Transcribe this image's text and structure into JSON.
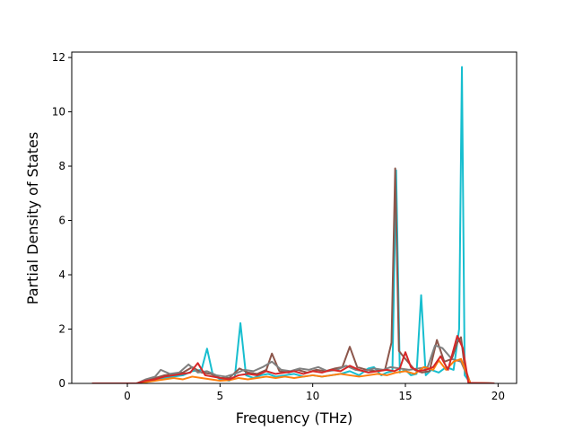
{
  "chart_data": {
    "type": "line",
    "title": "",
    "xlabel": "Frequency (THz)",
    "ylabel": "Partial Density of States",
    "xlim": [
      -3.0,
      21.0
    ],
    "ylim": [
      0,
      12.2
    ],
    "xticks": [
      0,
      5,
      10,
      15,
      20
    ],
    "yticks": [
      0,
      2,
      4,
      6,
      8,
      10,
      12
    ],
    "grid": false,
    "legend": "none",
    "series": [
      {
        "color": "#17becf",
        "x": [
          -1.9,
          0.5,
          1.0,
          1.5,
          2.0,
          2.5,
          3.0,
          3.5,
          4.0,
          4.3,
          4.6,
          5.0,
          5.5,
          5.8,
          6.1,
          6.4,
          6.8,
          7.2,
          7.6,
          8.0,
          8.5,
          9.0,
          9.5,
          10.0,
          10.5,
          11.0,
          11.5,
          12.0,
          12.5,
          13.0,
          13.3,
          13.7,
          14.0,
          14.3,
          14.5,
          14.7,
          15.0,
          15.3,
          15.6,
          15.85,
          16.1,
          16.4,
          16.8,
          17.2,
          17.6,
          17.9,
          18.05,
          18.2,
          18.5,
          19.8
        ],
        "y": [
          0,
          0,
          0.05,
          0.12,
          0.2,
          0.25,
          0.3,
          0.45,
          0.5,
          1.28,
          0.35,
          0.15,
          0.1,
          0.25,
          2.22,
          0.3,
          0.2,
          0.3,
          0.35,
          0.25,
          0.3,
          0.35,
          0.25,
          0.3,
          0.25,
          0.3,
          0.35,
          0.45,
          0.3,
          0.55,
          0.6,
          0.3,
          0.4,
          0.45,
          7.85,
          0.4,
          0.5,
          0.3,
          0.35,
          3.25,
          0.3,
          0.5,
          0.4,
          0.6,
          0.5,
          2.0,
          11.65,
          0.3,
          0.02,
          0
        ]
      },
      {
        "color": "#8c564b",
        "x": [
          -1.9,
          0.5,
          1.0,
          1.5,
          2.0,
          2.5,
          3.0,
          3.5,
          4.0,
          4.5,
          5.0,
          5.5,
          6.05,
          6.5,
          7.0,
          7.5,
          7.8,
          8.2,
          8.7,
          9.2,
          9.7,
          10.2,
          10.7,
          11.2,
          11.6,
          12.0,
          12.4,
          12.9,
          13.4,
          13.9,
          14.25,
          14.45,
          14.65,
          15.0,
          15.5,
          15.9,
          16.3,
          16.7,
          17.1,
          17.5,
          17.8,
          18.0,
          18.2,
          18.5,
          19.8
        ],
        "y": [
          0,
          0,
          0.1,
          0.2,
          0.3,
          0.35,
          0.4,
          0.6,
          0.4,
          0.35,
          0.2,
          0.2,
          0.55,
          0.4,
          0.35,
          0.5,
          1.1,
          0.45,
          0.4,
          0.5,
          0.4,
          0.5,
          0.45,
          0.55,
          0.6,
          1.35,
          0.6,
          0.5,
          0.45,
          0.5,
          1.5,
          7.92,
          1.2,
          0.9,
          0.5,
          0.4,
          0.45,
          1.6,
          0.8,
          0.9,
          1.5,
          1.7,
          0.6,
          0.02,
          0
        ]
      },
      {
        "color": "#7f7f7f",
        "x": [
          -1.9,
          0.5,
          1.0,
          1.5,
          1.8,
          2.3,
          2.8,
          3.3,
          3.8,
          4.3,
          4.8,
          5.3,
          5.8,
          6.3,
          6.8,
          7.3,
          7.8,
          8.3,
          8.8,
          9.3,
          9.8,
          10.3,
          10.8,
          11.3,
          11.8,
          12.3,
          12.8,
          13.3,
          13.8,
          14.2,
          14.7,
          15.2,
          15.7,
          16.2,
          16.6,
          17.0,
          17.5,
          18.0,
          18.5,
          19.8
        ],
        "y": [
          0,
          0,
          0.15,
          0.25,
          0.5,
          0.35,
          0.4,
          0.7,
          0.4,
          0.45,
          0.3,
          0.25,
          0.35,
          0.5,
          0.45,
          0.6,
          0.8,
          0.5,
          0.45,
          0.55,
          0.5,
          0.6,
          0.45,
          0.5,
          0.65,
          0.5,
          0.45,
          0.55,
          0.5,
          0.6,
          0.55,
          0.5,
          0.55,
          0.6,
          1.4,
          1.3,
          0.9,
          0.8,
          0.02,
          0
        ]
      },
      {
        "color": "#ff7f0e",
        "x": [
          -1.9,
          0.5,
          1.0,
          1.5,
          2.0,
          2.5,
          3.0,
          3.5,
          4.0,
          4.5,
          5.0,
          5.5,
          6.0,
          6.5,
          7.0,
          7.5,
          8.0,
          8.5,
          9.0,
          9.5,
          10.0,
          10.5,
          11.0,
          11.5,
          12.0,
          12.5,
          13.0,
          13.5,
          14.0,
          14.5,
          15.0,
          15.5,
          16.0,
          16.5,
          16.8,
          17.2,
          17.6,
          18.0,
          18.5,
          19.8
        ],
        "y": [
          0,
          0,
          0.05,
          0.1,
          0.15,
          0.2,
          0.15,
          0.25,
          0.2,
          0.15,
          0.1,
          0.12,
          0.2,
          0.15,
          0.2,
          0.25,
          0.2,
          0.25,
          0.2,
          0.25,
          0.3,
          0.25,
          0.3,
          0.35,
          0.3,
          0.25,
          0.3,
          0.35,
          0.3,
          0.4,
          0.45,
          0.35,
          0.6,
          0.5,
          0.85,
          0.5,
          0.8,
          0.9,
          0.02,
          0
        ]
      },
      {
        "color": "#d62728",
        "x": [
          -1.9,
          0.5,
          1.0,
          1.5,
          2.0,
          2.5,
          3.0,
          3.4,
          3.8,
          4.2,
          4.6,
          5.0,
          5.5,
          6.0,
          6.5,
          7.0,
          7.5,
          8.0,
          8.5,
          9.0,
          9.5,
          10.0,
          10.5,
          11.0,
          11.5,
          12.0,
          12.5,
          13.0,
          13.5,
          14.0,
          14.4,
          14.7,
          15.0,
          15.3,
          15.7,
          16.1,
          16.5,
          16.9,
          17.3,
          17.8,
          18.1,
          18.4,
          19.8
        ],
        "y": [
          0,
          0,
          0.1,
          0.15,
          0.25,
          0.3,
          0.35,
          0.4,
          0.75,
          0.3,
          0.25,
          0.2,
          0.15,
          0.3,
          0.35,
          0.3,
          0.45,
          0.35,
          0.4,
          0.45,
          0.35,
          0.45,
          0.4,
          0.5,
          0.45,
          0.65,
          0.5,
          0.4,
          0.45,
          0.5,
          0.45,
          0.55,
          1.15,
          0.6,
          0.45,
          0.5,
          0.6,
          1.0,
          0.5,
          1.75,
          1.3,
          0.02,
          0
        ]
      }
    ]
  }
}
